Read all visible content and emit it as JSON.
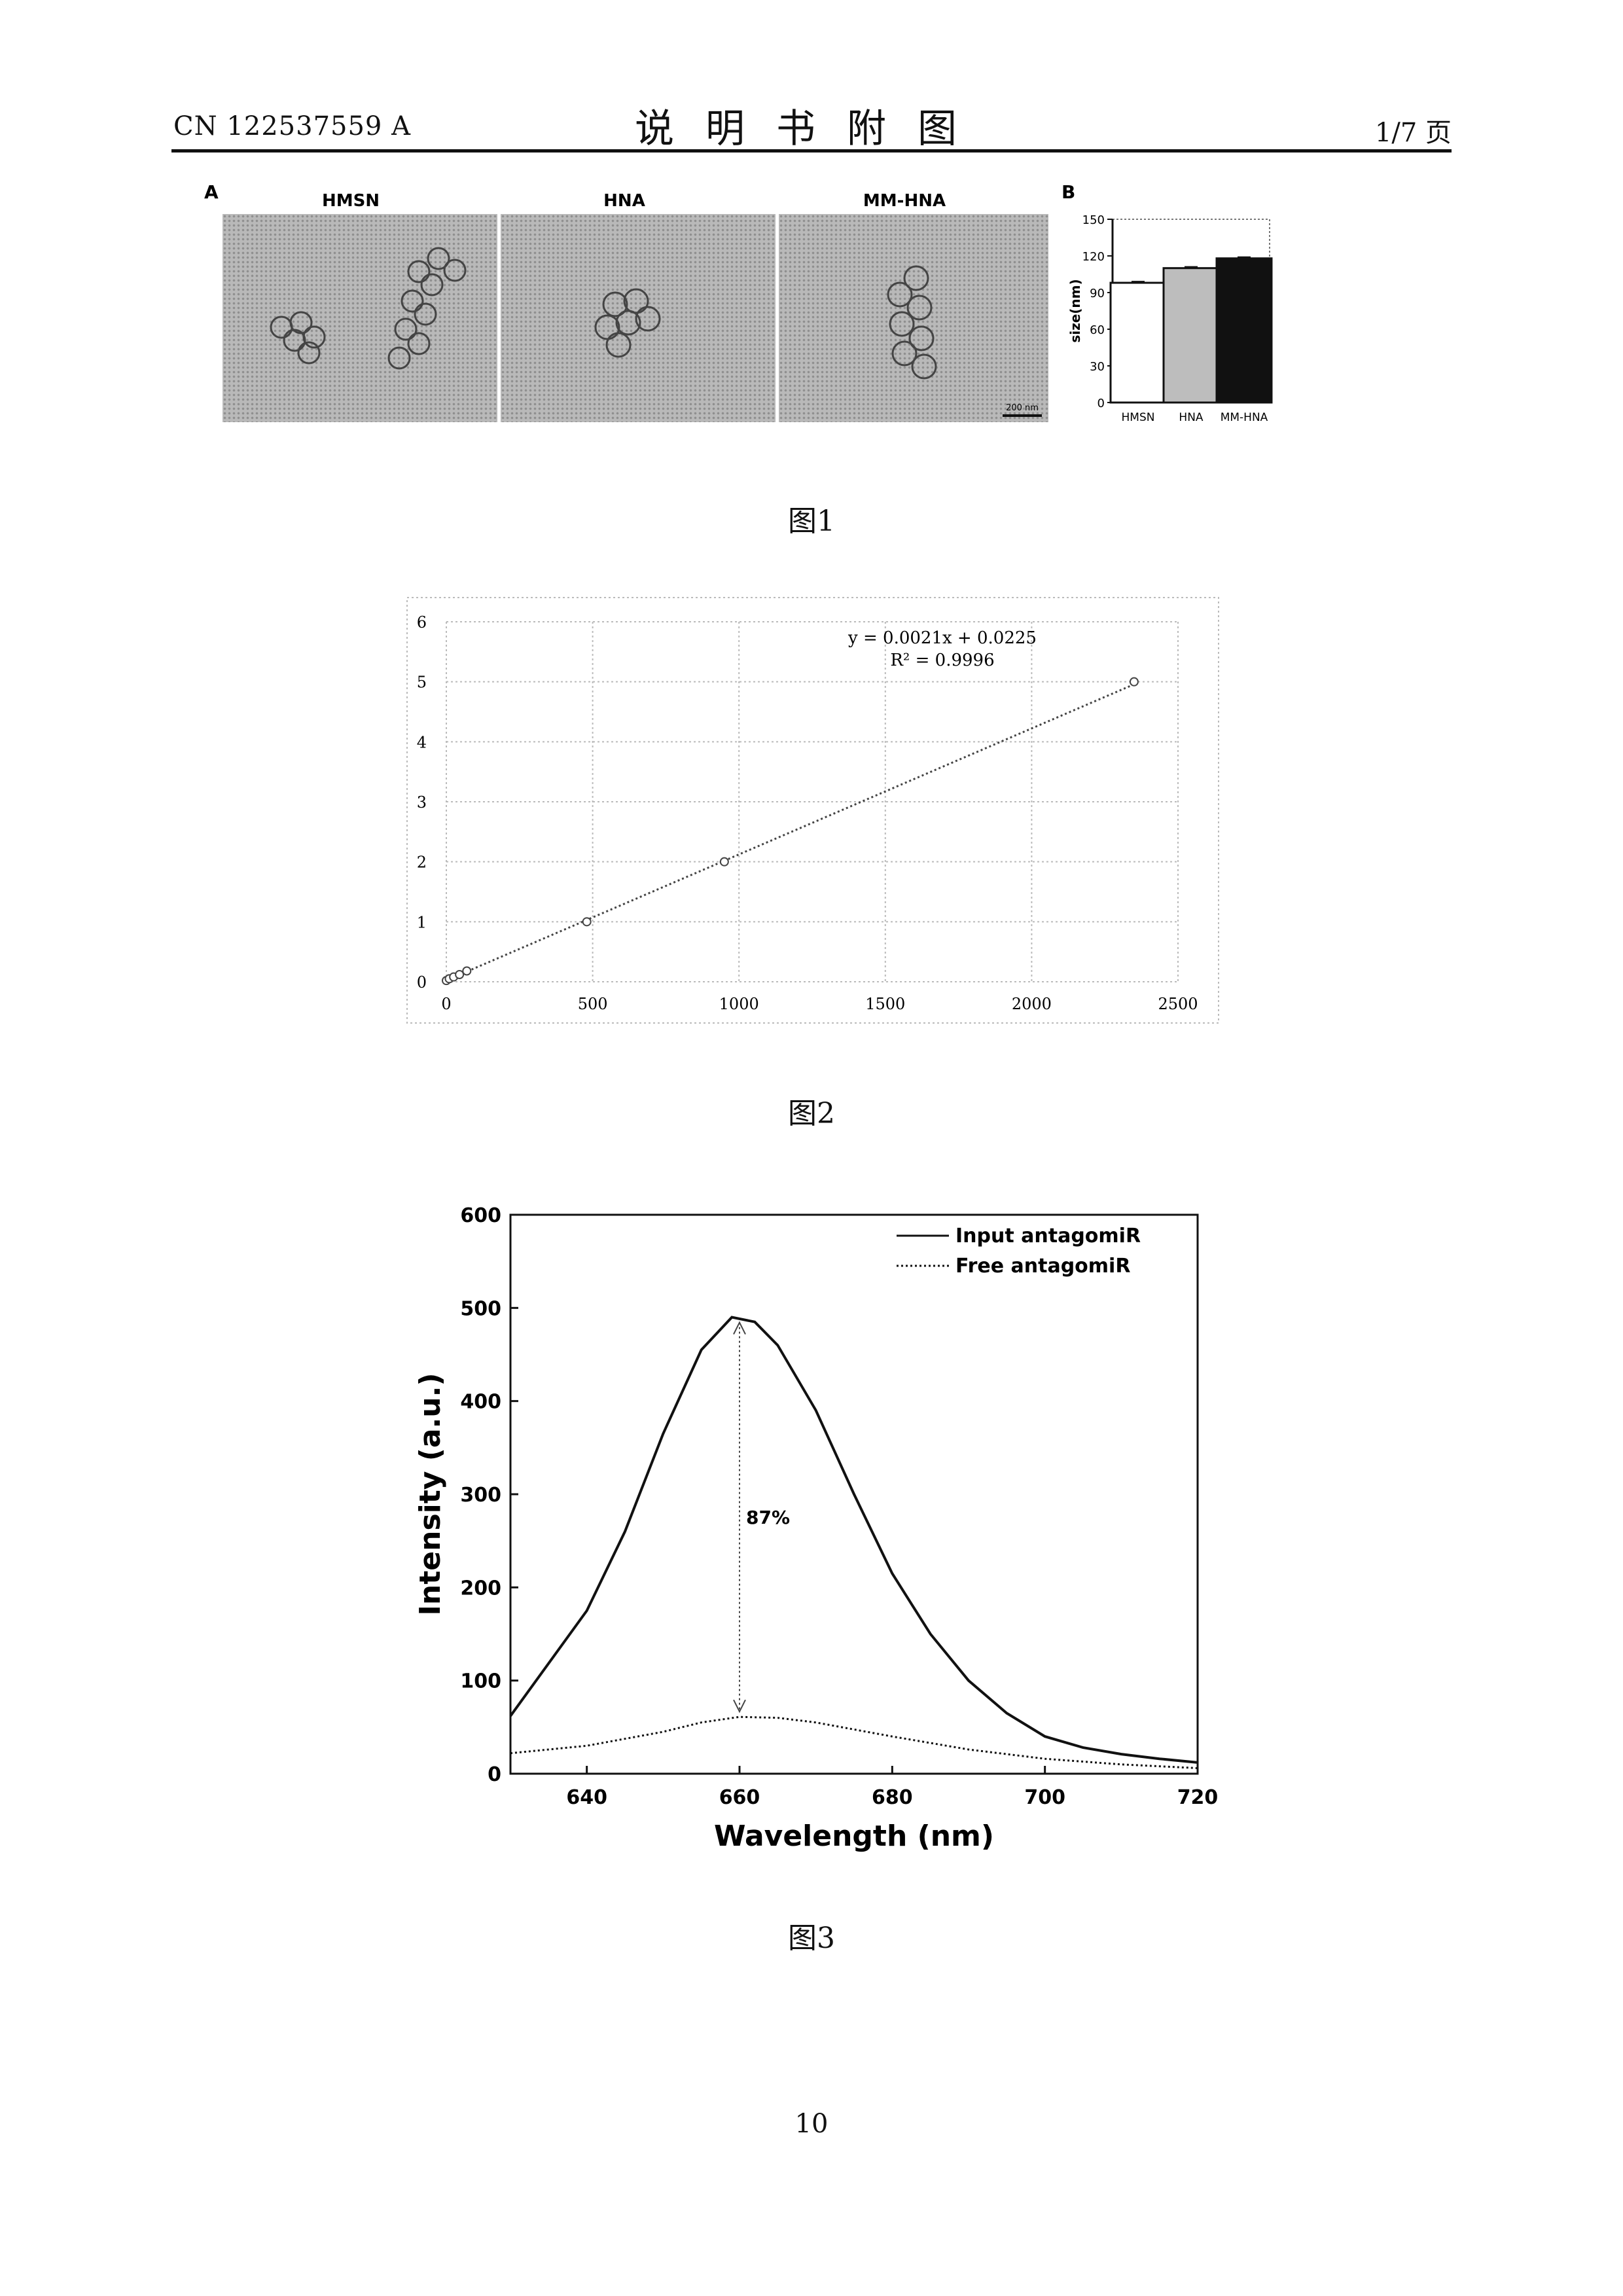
{
  "header": {
    "publication_number": "CN 122537559 A",
    "title": "说明书附图",
    "page_of": "1/7 页"
  },
  "figure1": {
    "caption": "图1",
    "panel_a_label": "A",
    "panel_b_label": "B",
    "tem_labels": [
      "HMSN",
      "HNA",
      "MM-HNA"
    ],
    "scale_bar": "200 nm"
  },
  "figure2": {
    "caption": "图2"
  },
  "figure3": {
    "caption": "图3"
  },
  "page_number": "10",
  "chart_data": [
    {
      "type": "bar",
      "categories": [
        "HMSN",
        "HNA",
        "MM-HNA"
      ],
      "values": [
        98,
        110,
        118
      ],
      "colors": [
        "#ffffff",
        "#bdbdbd",
        "#111111"
      ],
      "title": "",
      "xlabel": "",
      "ylabel": "size(nm)",
      "ylim": [
        0,
        150
      ],
      "yticks": [
        0,
        30,
        60,
        90,
        120,
        150
      ],
      "grid": false
    },
    {
      "type": "scatter",
      "title": "",
      "xlabel": "",
      "ylabel": "",
      "xlim": [
        0,
        2500
      ],
      "ylim": [
        0,
        6
      ],
      "xticks": [
        0,
        500,
        1000,
        1500,
        2000,
        2500
      ],
      "yticks": [
        0,
        1,
        2,
        3,
        4,
        5,
        6
      ],
      "grid": true,
      "points": [
        {
          "x": 0,
          "y": 0.02
        },
        {
          "x": 10,
          "y": 0.05
        },
        {
          "x": 25,
          "y": 0.08
        },
        {
          "x": 45,
          "y": 0.12
        },
        {
          "x": 70,
          "y": 0.18
        },
        {
          "x": 480,
          "y": 1.0
        },
        {
          "x": 950,
          "y": 2.0
        },
        {
          "x": 2350,
          "y": 5.0
        }
      ],
      "trendline": {
        "slope": 0.0021,
        "intercept": 0.0225,
        "x_range": [
          0,
          2350
        ]
      },
      "equation_text": "y = 0.0021x + 0.0225",
      "r2_text": "R² = 0.9996"
    },
    {
      "type": "line",
      "title": "",
      "xlabel": "Wavelength (nm)",
      "ylabel": "Intensity (a.u.)",
      "xlim": [
        630,
        720
      ],
      "ylim": [
        0,
        600
      ],
      "xticks": [
        640,
        660,
        680,
        700,
        720
      ],
      "yticks": [
        0,
        100,
        200,
        300,
        400,
        500,
        600
      ],
      "legend_position": "top-right",
      "series": [
        {
          "name": "Input antagomiR",
          "style": "solid",
          "x": [
            630,
            640,
            645,
            650,
            655,
            659,
            662,
            665,
            670,
            675,
            680,
            685,
            690,
            695,
            700,
            705,
            710,
            715,
            720
          ],
          "y": [
            62,
            175,
            260,
            365,
            455,
            490,
            485,
            460,
            390,
            300,
            215,
            150,
            100,
            65,
            40,
            28,
            21,
            16,
            12
          ]
        },
        {
          "name": "Free antagomiR",
          "style": "dotted",
          "x": [
            630,
            640,
            650,
            655,
            660,
            665,
            670,
            680,
            690,
            700,
            710,
            720
          ],
          "y": [
            22,
            30,
            45,
            55,
            61,
            60,
            55,
            40,
            26,
            16,
            10,
            6
          ]
        }
      ],
      "annotation": {
        "text": "87%",
        "x": 660,
        "y_from": 490,
        "y_to": 61
      }
    }
  ]
}
